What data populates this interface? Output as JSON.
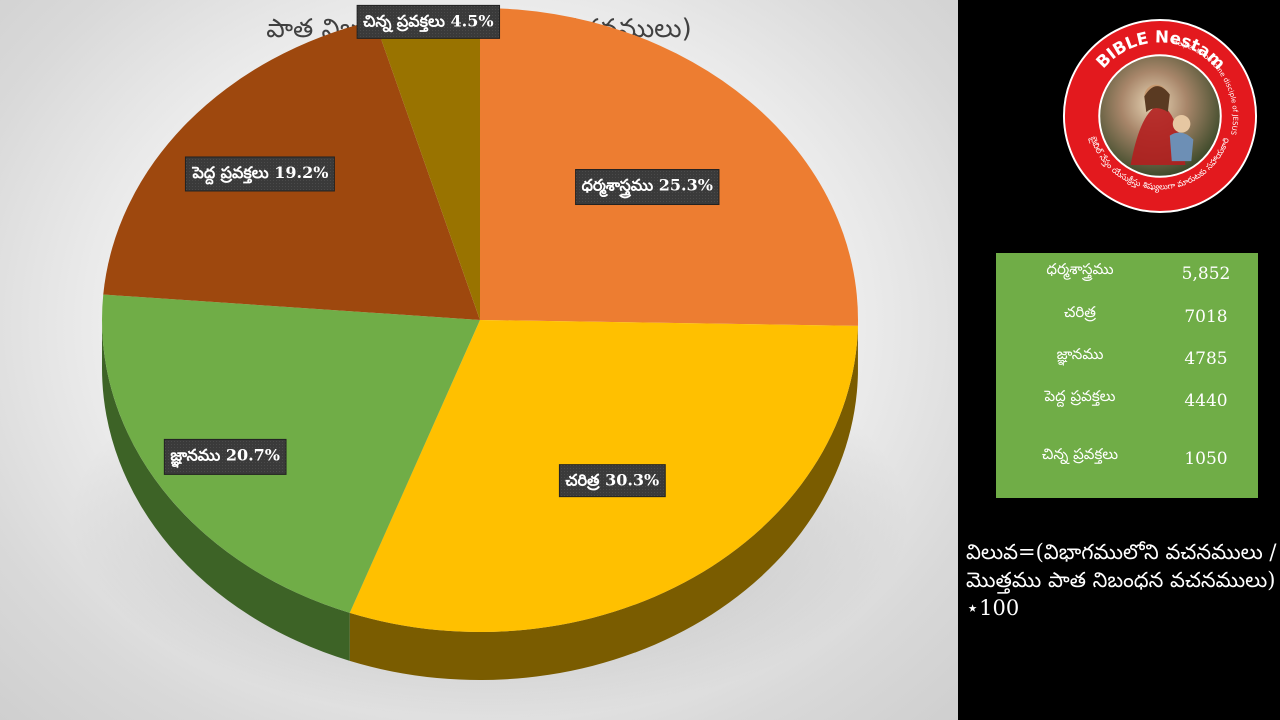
{
  "chart_data": {
    "type": "pie",
    "title": "పాత నిబంధన విభాగములు (వచనములు)",
    "categories": [
      "ధర్మశాస్త్రము",
      "చరిత్ర",
      "జ్ఞానము",
      "పెద్ద ప్రవక్తలు",
      "చిన్న ప్రవక్తలు"
    ],
    "values": [
      25.3,
      30.3,
      20.7,
      19.2,
      4.5
    ],
    "labels": [
      "ధర్మశాస్త్రము 25.3%",
      "చరిత్ర 30.3%",
      "జ్ఞానము 20.7%",
      "పెద్ద ప్రవక్తలు 19.2%",
      "చిన్న ప్రవక్తలు 4.5%"
    ],
    "colors": [
      "#ed7d31",
      "#ffc000",
      "#70ad47",
      "#9e480e",
      "#997300"
    ],
    "side_colors": [
      "#8a4a1c",
      "#7a5c00",
      "#3d6326",
      "#5a2a08",
      "#5c4500"
    ]
  },
  "logo": {
    "ring_text_top": "BIBLE Nestam",
    "ring_text_right": "Helper to become disciple of JESUS CHRIST",
    "ring_text_bottom": "బైబిల్ నేస్తం యేసుక్రీస్తు శిష్యులుగా మారుటకు సహాయకారి",
    "ring_color": "#e3191e"
  },
  "value_table": {
    "rows": [
      {
        "name": "ధర్మశాస్త్రము",
        "value": "5,852"
      },
      {
        "name": "చరిత్ర",
        "value": "7018"
      },
      {
        "name": "జ్ఞానము",
        "value": "4785"
      },
      {
        "name": "పెద్ద ప్రవక్తలు",
        "value": "4440"
      },
      {
        "name": "చిన్న ప్రవక్తలు",
        "value": "1050"
      }
    ]
  },
  "formula": {
    "line1": "విలువ=(విభాగములోని వచనములు /",
    "line2": "మొత్తము పాత నిబంధన వచనములు)",
    "line3": "⋆100"
  }
}
